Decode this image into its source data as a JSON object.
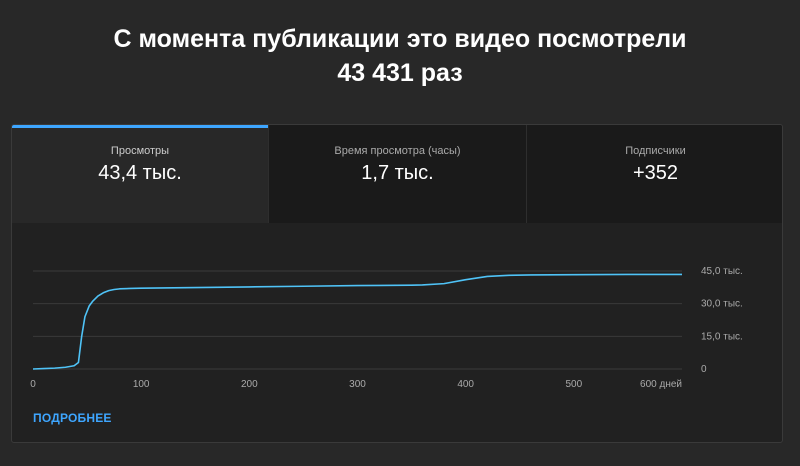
{
  "headline": {
    "line1": "С момента публикации это видео посмотрели",
    "line2": "43 431 раз"
  },
  "tabs": [
    {
      "label": "Просмотры",
      "value": "43,4 тыс.",
      "active": true
    },
    {
      "label": "Время просмотра (часы)",
      "value": "1,7 тыс.",
      "active": false
    },
    {
      "label": "Подписчики",
      "value": "+352",
      "active": false
    }
  ],
  "more_link": "ПОДРОБНЕЕ",
  "colors": {
    "accent": "#3ea6ff",
    "line": "#4fc3f7",
    "grid": "#3a3a3a",
    "tick": "#aaaaaa"
  },
  "chart_data": {
    "type": "line",
    "xlabel": "",
    "ylabel": "",
    "xlim": [
      0,
      600
    ],
    "ylim": [
      0,
      45000
    ],
    "x_ticks": [
      0,
      100,
      200,
      300,
      400,
      500,
      600
    ],
    "x_tick_labels": [
      "0",
      "100",
      "200",
      "300",
      "400",
      "500",
      "600 дней"
    ],
    "y_ticks": [
      0,
      15000,
      30000,
      45000
    ],
    "y_tick_labels": [
      "0",
      "15,0 тыс.",
      "30,0 тыс.",
      "45,0 тыс."
    ],
    "grid": true,
    "series": [
      {
        "x": [
          0,
          10,
          20,
          30,
          38,
          42,
          45,
          48,
          52,
          55,
          60,
          65,
          70,
          75,
          80,
          90,
          100,
          150,
          200,
          250,
          300,
          350,
          360,
          380,
          400,
          420,
          440,
          460,
          500,
          550,
          600
        ],
        "y": [
          0,
          200,
          400,
          800,
          1500,
          3000,
          15000,
          24000,
          29000,
          31000,
          33500,
          35000,
          36000,
          36500,
          36800,
          37000,
          37100,
          37400,
          37700,
          38000,
          38300,
          38500,
          38600,
          39200,
          41000,
          42500,
          43000,
          43200,
          43300,
          43400,
          43431
        ]
      }
    ]
  }
}
